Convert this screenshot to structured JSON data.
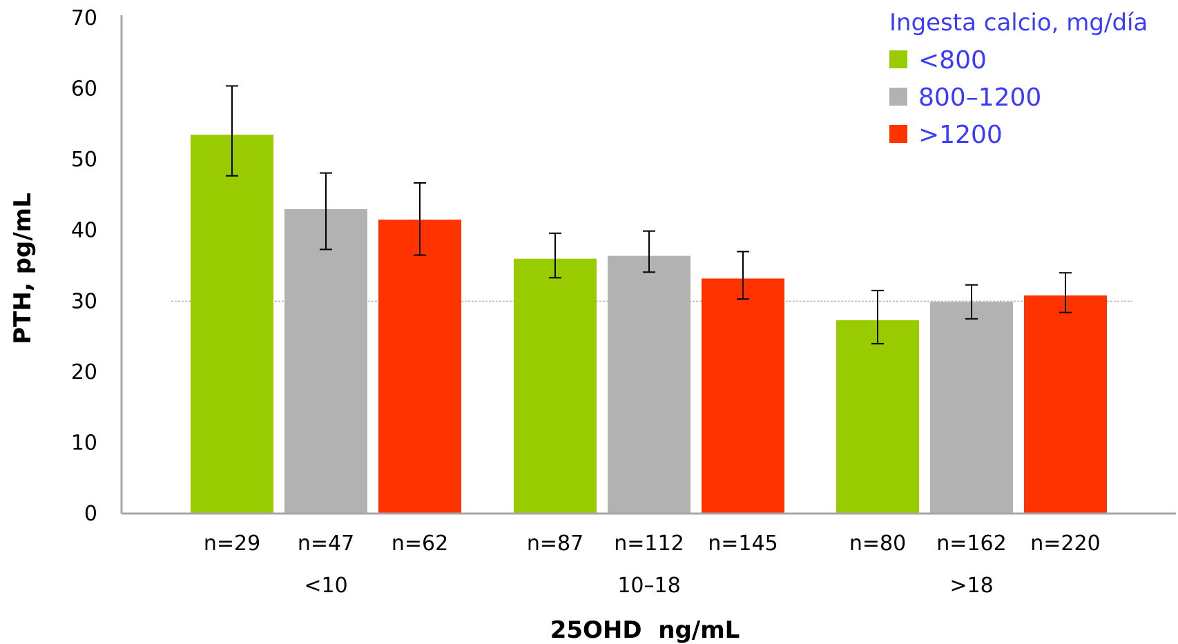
{
  "chart_data": {
    "type": "bar",
    "title": "",
    "xlabel": "25OHD  ng/mL",
    "ylabel": "PTH, pg/mL",
    "ylim": [
      0,
      70
    ],
    "yticks": [
      0,
      10,
      20,
      30,
      40,
      50,
      60,
      70
    ],
    "reference_line": 30,
    "categories": [
      "<10",
      "10–18",
      ">18"
    ],
    "legend": {
      "title": "Ingesta calcio, mg/día",
      "position": "top-right"
    },
    "series": [
      {
        "name": "<800",
        "color": "#99cc00",
        "values": [
          53.5,
          36.0,
          27.3
        ],
        "error_low": [
          47.7,
          33.3,
          24.0
        ],
        "error_high": [
          60.4,
          39.6,
          31.5
        ],
        "n_labels": [
          "n=29",
          "n=87",
          "n=80"
        ]
      },
      {
        "name": "800–1200",
        "color": "#b2b2b2",
        "values": [
          43.0,
          36.4,
          29.9
        ],
        "error_low": [
          37.3,
          34.1,
          27.5
        ],
        "error_high": [
          48.1,
          39.9,
          32.3
        ],
        "n_labels": [
          "n=47",
          "n=112",
          "n=162"
        ]
      },
      {
        "name": ">1200",
        "color": "#ff3300",
        "values": [
          41.5,
          33.2,
          30.8
        ],
        "error_low": [
          36.5,
          30.3,
          28.4
        ],
        "error_high": [
          46.7,
          37.0,
          34.0
        ],
        "n_labels": [
          "n=62",
          "n=145",
          "n=220"
        ]
      }
    ]
  }
}
